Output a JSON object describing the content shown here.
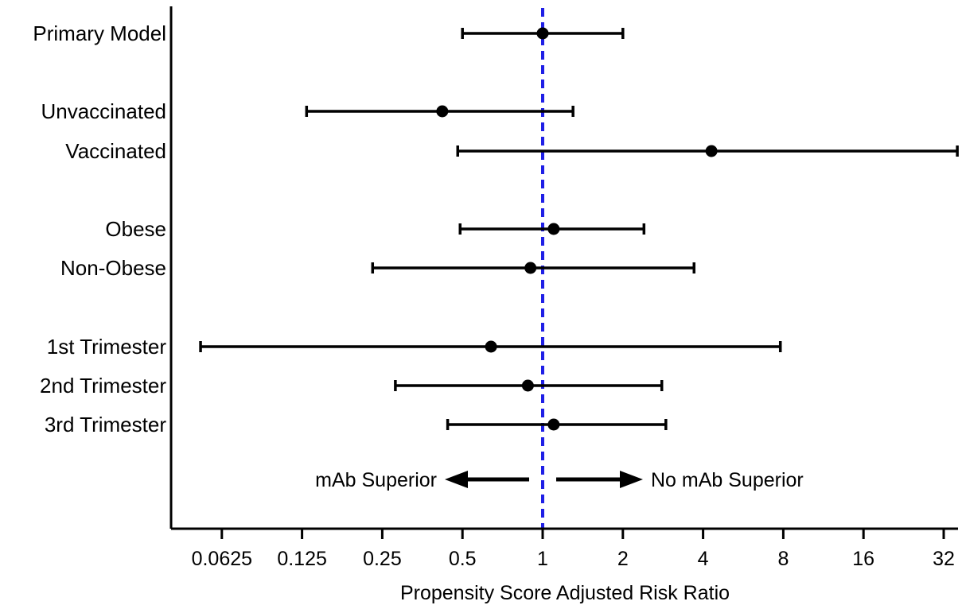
{
  "chart_data": {
    "type": "forest",
    "xlabel": "Propensity Score Adjusted Risk Ratio",
    "x_scale": "log2",
    "xlim": [
      0.04,
      36
    ],
    "x_ticks": [
      0.0625,
      0.125,
      0.25,
      0.5,
      1,
      2,
      4,
      8,
      16,
      32
    ],
    "x_tick_labels": [
      "0.0625",
      "0.125",
      "0.25",
      "0.5",
      "1",
      "2",
      "4",
      "8",
      "16",
      "32"
    ],
    "reference_line": {
      "x": 1,
      "style": "dashed",
      "color": "#1f1fe6"
    },
    "rows": [
      {
        "label": "Primary Model",
        "estimate": 1.0,
        "lower": 0.5,
        "upper": 2.0,
        "group": 0
      },
      {
        "label": "Unvaccinated",
        "estimate": 0.42,
        "lower": 0.13,
        "upper": 1.3,
        "group": 1
      },
      {
        "label": "Vaccinated",
        "estimate": 4.3,
        "lower": 0.48,
        "upper": 36,
        "group": 1
      },
      {
        "label": "Obese",
        "estimate": 1.1,
        "lower": 0.49,
        "upper": 2.4,
        "group": 2
      },
      {
        "label": "Non-Obese",
        "estimate": 0.9,
        "lower": 0.23,
        "upper": 3.7,
        "group": 2
      },
      {
        "label": "1st Trimester",
        "estimate": 0.64,
        "lower": 0.052,
        "upper": 7.8,
        "group": 3
      },
      {
        "label": "2nd Trimester",
        "estimate": 0.88,
        "lower": 0.28,
        "upper": 2.8,
        "group": 3
      },
      {
        "label": "3rd Trimester",
        "estimate": 1.1,
        "lower": 0.44,
        "upper": 2.9,
        "group": 3
      }
    ],
    "annotations": {
      "left": "mAb Superior",
      "right": "No mAb Superior"
    },
    "colors": {
      "marks": "#000000",
      "reference": "#1f1fe6"
    }
  }
}
